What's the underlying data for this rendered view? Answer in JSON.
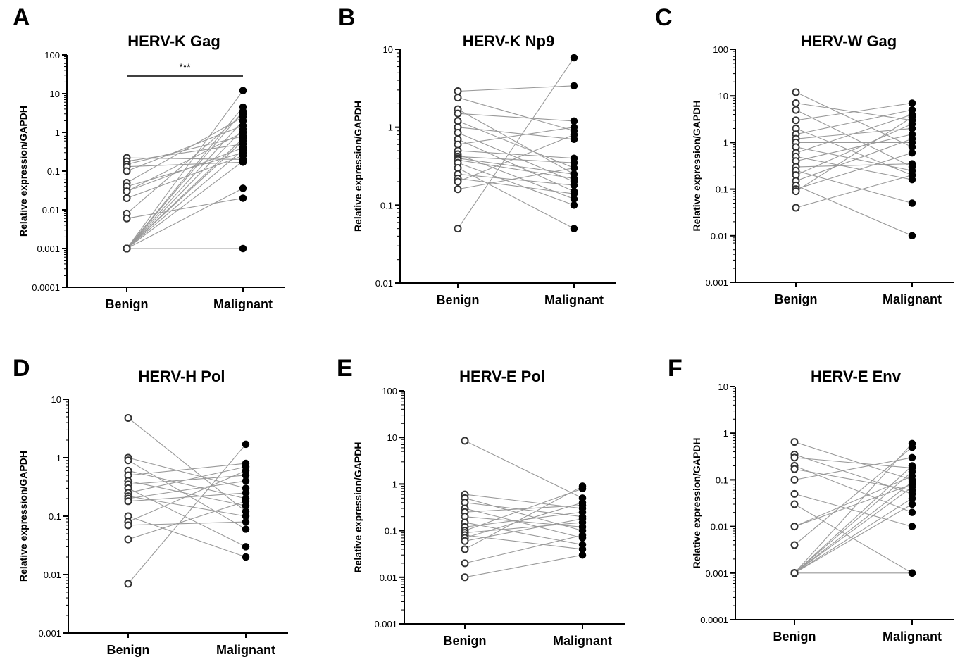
{
  "colors": {
    "axis": "#000000",
    "pair_line": "#999999",
    "benign_marker": "open-circle",
    "malignant_marker": "filled-circle"
  },
  "chart_data": [
    {
      "type": "scatter",
      "panel": "A",
      "title": "HERV-K Gag",
      "ylabel": "Relative expression/GAPDH",
      "categories": [
        "Benign",
        "Malignant"
      ],
      "yscale": "log",
      "ylim": [
        0.0001,
        100
      ],
      "yticks": [
        "0.0001",
        "0.001",
        "0.01",
        "0.1",
        "1",
        "10",
        "100"
      ],
      "significance": "***",
      "pairs": [
        [
          0.22,
          0.2
        ],
        [
          0.18,
          0.5
        ],
        [
          0.15,
          0.8
        ],
        [
          0.13,
          0.17
        ],
        [
          0.1,
          1.5
        ],
        [
          0.05,
          2.5
        ],
        [
          0.04,
          0.3
        ],
        [
          0.03,
          0.4
        ],
        [
          0.03,
          1.0
        ],
        [
          0.02,
          0.25
        ],
        [
          0.008,
          3.0
        ],
        [
          0.006,
          0.02
        ],
        [
          0.001,
          12
        ],
        [
          0.001,
          4.5
        ],
        [
          0.001,
          3.5
        ],
        [
          0.001,
          2.0
        ],
        [
          0.001,
          1.2
        ],
        [
          0.001,
          0.7
        ],
        [
          0.001,
          0.6
        ],
        [
          0.001,
          0.35
        ],
        [
          0.001,
          0.18
        ],
        [
          0.001,
          0.036
        ],
        [
          0.001,
          0.001
        ]
      ]
    },
    {
      "type": "scatter",
      "panel": "B",
      "title": "HERV-K Np9",
      "ylabel": "Relative expression/GAPDH",
      "categories": [
        "Benign",
        "Malignant"
      ],
      "yscale": "log",
      "ylim": [
        0.01,
        10
      ],
      "yticks": [
        "0.01",
        "0.1",
        "1",
        "10"
      ],
      "pairs": [
        [
          2.9,
          3.4
        ],
        [
          2.4,
          0.9
        ],
        [
          1.7,
          0.25
        ],
        [
          1.5,
          1.2
        ],
        [
          1.2,
          0.3
        ],
        [
          1.0,
          0.7
        ],
        [
          0.85,
          0.2
        ],
        [
          0.7,
          0.15
        ],
        [
          0.6,
          1.0
        ],
        [
          0.5,
          0.4
        ],
        [
          0.45,
          0.12
        ],
        [
          0.42,
          0.35
        ],
        [
          0.4,
          0.25
        ],
        [
          0.38,
          0.22
        ],
        [
          0.35,
          0.1
        ],
        [
          0.3,
          0.05
        ],
        [
          0.25,
          0.18
        ],
        [
          0.22,
          0.14
        ],
        [
          0.2,
          0.8
        ],
        [
          0.16,
          0.3
        ],
        [
          0.05,
          7.8
        ]
      ]
    },
    {
      "type": "scatter",
      "panel": "C",
      "title": "HERV-W Gag",
      "ylabel": "Relative expression/GAPDH",
      "categories": [
        "Benign",
        "Malignant"
      ],
      "yscale": "log",
      "ylim": [
        0.001,
        100
      ],
      "yticks": [
        "0.001",
        "0.01",
        "0.1",
        "1",
        "10",
        "100"
      ],
      "pairs": [
        [
          12,
          0.8
        ],
        [
          7,
          3.0
        ],
        [
          5,
          0.3
        ],
        [
          3,
          7.0
        ],
        [
          2,
          0.2
        ],
        [
          1.5,
          5.0
        ],
        [
          1.2,
          2.0
        ],
        [
          1.0,
          1.0
        ],
        [
          0.8,
          0.25
        ],
        [
          0.6,
          4.0
        ],
        [
          0.5,
          0.16
        ],
        [
          0.4,
          1.5
        ],
        [
          0.3,
          0.35
        ],
        [
          0.25,
          0.05
        ],
        [
          0.2,
          2.5
        ],
        [
          0.15,
          1.2
        ],
        [
          0.12,
          0.01
        ],
        [
          0.1,
          0.6
        ],
        [
          0.09,
          3.5
        ],
        [
          0.04,
          0.2
        ]
      ]
    },
    {
      "type": "scatter",
      "panel": "D",
      "title": "HERV-H Pol",
      "ylabel": "Relative expression/GAPDH",
      "categories": [
        "Benign",
        "Malignant"
      ],
      "yscale": "log",
      "ylim": [
        0.001,
        10
      ],
      "yticks": [
        "0.001",
        "0.01",
        "0.1",
        "1",
        "10"
      ],
      "pairs": [
        [
          4.8,
          0.12
        ],
        [
          1.0,
          0.3
        ],
        [
          0.9,
          0.06
        ],
        [
          0.6,
          0.2
        ],
        [
          0.5,
          0.8
        ],
        [
          0.4,
          0.15
        ],
        [
          0.35,
          0.5
        ],
        [
          0.3,
          0.03
        ],
        [
          0.25,
          0.7
        ],
        [
          0.22,
          0.1
        ],
        [
          0.2,
          0.4
        ],
        [
          0.18,
          0.25
        ],
        [
          0.1,
          0.02
        ],
        [
          0.08,
          0.6
        ],
        [
          0.07,
          0.08
        ],
        [
          0.04,
          0.18
        ],
        [
          0.007,
          1.7
        ]
      ]
    },
    {
      "type": "scatter",
      "panel": "E",
      "title": "HERV-E Pol",
      "ylabel": "Relative expression/GAPDH",
      "categories": [
        "Benign",
        "Malignant"
      ],
      "yscale": "log",
      "ylim": [
        0.001,
        100
      ],
      "yticks": [
        "0.001",
        "0.01",
        "0.1",
        "1",
        "10",
        "100"
      ],
      "pairs": [
        [
          8.5,
          0.5
        ],
        [
          0.6,
          0.3
        ],
        [
          0.5,
          0.1
        ],
        [
          0.4,
          0.2
        ],
        [
          0.3,
          0.07
        ],
        [
          0.25,
          0.35
        ],
        [
          0.2,
          0.12
        ],
        [
          0.15,
          0.05
        ],
        [
          0.12,
          0.25
        ],
        [
          0.1,
          0.8
        ],
        [
          0.09,
          0.15
        ],
        [
          0.08,
          0.04
        ],
        [
          0.07,
          0.4
        ],
        [
          0.06,
          0.18
        ],
        [
          0.04,
          0.9
        ],
        [
          0.02,
          0.08
        ],
        [
          0.01,
          0.03
        ]
      ]
    },
    {
      "type": "scatter",
      "panel": "F",
      "title": "HERV-E Env",
      "ylabel": "Relative expression/GAPDH",
      "categories": [
        "Benign",
        "Malignant"
      ],
      "yscale": "log",
      "ylim": [
        0.0001,
        10
      ],
      "yticks": [
        "0.0001",
        "0.001",
        "0.01",
        "0.1",
        "1",
        "10"
      ],
      "pairs": [
        [
          0.65,
          0.1
        ],
        [
          0.35,
          0.05
        ],
        [
          0.3,
          0.18
        ],
        [
          0.2,
          0.02
        ],
        [
          0.17,
          0.06
        ],
        [
          0.1,
          0.3
        ],
        [
          0.05,
          0.01
        ],
        [
          0.03,
          0.001
        ],
        [
          0.01,
          0.12
        ],
        [
          0.01,
          0.08
        ],
        [
          0.004,
          0.5
        ],
        [
          0.001,
          0.6
        ],
        [
          0.001,
          0.2
        ],
        [
          0.001,
          0.15
        ],
        [
          0.001,
          0.09
        ],
        [
          0.001,
          0.07
        ],
        [
          0.001,
          0.04
        ],
        [
          0.001,
          0.03
        ],
        [
          0.001,
          0.001
        ]
      ]
    }
  ]
}
